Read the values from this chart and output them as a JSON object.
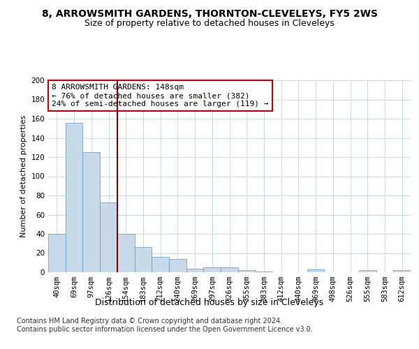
{
  "title": "8, ARROWSMITH GARDENS, THORNTON-CLEVELEYS, FY5 2WS",
  "subtitle": "Size of property relative to detached houses in Cleveleys",
  "xlabel": "Distribution of detached houses by size in Cleveleys",
  "ylabel": "Number of detached properties",
  "categories": [
    "40sqm",
    "69sqm",
    "97sqm",
    "126sqm",
    "154sqm",
    "183sqm",
    "212sqm",
    "240sqm",
    "269sqm",
    "297sqm",
    "326sqm",
    "355sqm",
    "383sqm",
    "412sqm",
    "440sqm",
    "469sqm",
    "498sqm",
    "526sqm",
    "555sqm",
    "583sqm",
    "612sqm"
  ],
  "values": [
    40,
    156,
    125,
    73,
    40,
    26,
    16,
    14,
    4,
    5,
    5,
    2,
    1,
    0,
    0,
    3,
    0,
    0,
    2,
    0,
    2
  ],
  "bar_color": "#c8d9ea",
  "bar_edge_color": "#5a96c8",
  "vline_x_index": 4,
  "vline_color": "#8b0000",
  "annotation_text": "8 ARROWSMITH GARDENS: 148sqm\n← 76% of detached houses are smaller (382)\n24% of semi-detached houses are larger (119) →",
  "annotation_box_color": "#ffffff",
  "annotation_box_edge_color": "#cc0000",
  "ylim": [
    0,
    200
  ],
  "yticks": [
    0,
    20,
    40,
    60,
    80,
    100,
    120,
    140,
    160,
    180,
    200
  ],
  "footer_text": "Contains HM Land Registry data © Crown copyright and database right 2024.\nContains public sector information licensed under the Open Government Licence v3.0.",
  "background_color": "#ffffff",
  "grid_color": "#c8d9ea",
  "title_fontsize": 10,
  "subtitle_fontsize": 9,
  "xlabel_fontsize": 9,
  "ylabel_fontsize": 8,
  "tick_fontsize": 7.5,
  "annotation_fontsize": 8,
  "footer_fontsize": 7
}
